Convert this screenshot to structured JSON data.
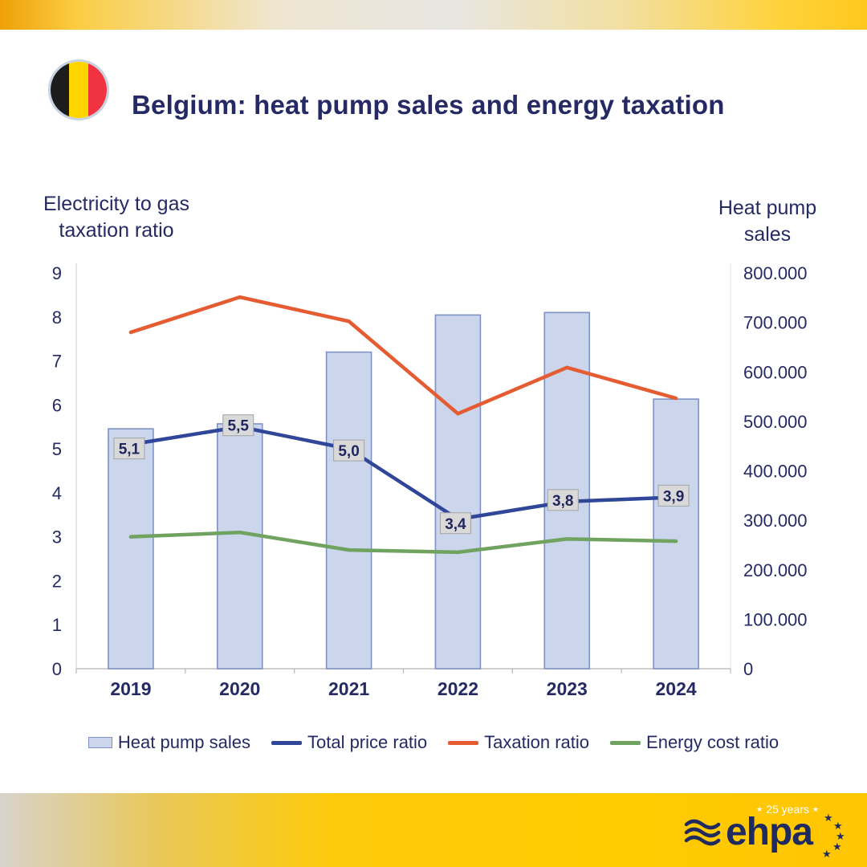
{
  "header": {
    "title": "Belgium: heat pump sales and energy taxation",
    "flag_colors": [
      "#1C1C1C",
      "#FFD500",
      "#EF3340"
    ]
  },
  "chart_data": {
    "type": "bar",
    "subtype": "combo bar + line, dual axis",
    "categories": [
      "2019",
      "2020",
      "2021",
      "2022",
      "2023",
      "2024"
    ],
    "left_axis": {
      "title": "Electricity to gas taxation ratio",
      "ticks": [
        "0",
        "1",
        "2",
        "3",
        "4",
        "5",
        "6",
        "7",
        "8",
        "9"
      ],
      "min": 0,
      "max": 9
    },
    "right_axis": {
      "title": "Heat pump sales",
      "ticks": [
        "0",
        "100.000",
        "200.000",
        "300.000",
        "400.000",
        "500.000",
        "600.000",
        "700.000",
        "800.000"
      ],
      "min": 0,
      "max": 800000
    },
    "series": [
      {
        "name": "Heat pump sales",
        "type": "bar",
        "axis": "right",
        "color": "#CBD5EC",
        "border": "#7E93C2",
        "values": [
          485000,
          495000,
          640000,
          715000,
          720000,
          545000
        ]
      },
      {
        "name": "Total price ratio",
        "type": "line",
        "axis": "left",
        "color": "#2F4699",
        "values": [
          5.1,
          5.5,
          5.0,
          3.4,
          3.8,
          3.9
        ],
        "labels": [
          "5,1",
          "5,5",
          "5,0",
          "3,4",
          "3,8",
          "3,9"
        ],
        "label_box_fill": "#D9D9D9",
        "label_box_border": "#A3A3A3"
      },
      {
        "name": "Taxation ratio",
        "type": "line",
        "axis": "left",
        "color": "#E55C33",
        "values": [
          7.65,
          8.45,
          7.9,
          5.8,
          6.85,
          6.15
        ]
      },
      {
        "name": "Energy cost ratio",
        "type": "line",
        "axis": "left",
        "color": "#6FA35F",
        "values": [
          3.0,
          3.1,
          2.7,
          2.65,
          2.95,
          2.9
        ]
      }
    ],
    "grid": false,
    "legend_position": "bottom"
  },
  "legend": [
    {
      "label": "Heat pump sales",
      "type": "bar",
      "color": "#CBD5EC",
      "border": "#7E93C2"
    },
    {
      "label": "Total price ratio",
      "type": "line",
      "color": "#2F4699"
    },
    {
      "label": "Taxation ratio",
      "type": "line",
      "color": "#E55C33"
    },
    {
      "label": "Energy cost ratio",
      "type": "line",
      "color": "#6FA35F"
    }
  ],
  "footer": {
    "logo_text": "ehpa",
    "anniversary": "25 years"
  }
}
